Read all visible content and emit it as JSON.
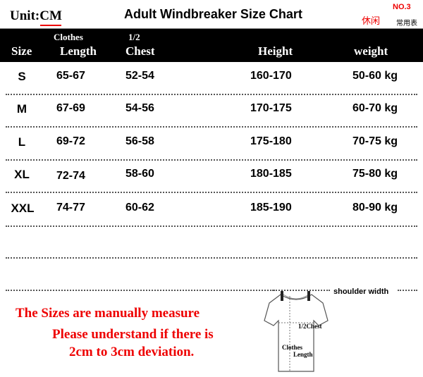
{
  "header": {
    "unit": "Unit:CM",
    "title": "Adult Windbreaker Size Chart",
    "no": "NO.3",
    "tag_red": "休闲",
    "tag_black": "常用表"
  },
  "columns": {
    "size": "Size",
    "length_top": "Clothes",
    "length": "Length",
    "chest_top": "1/2",
    "chest": "Chest",
    "height": "Height",
    "weight": "weight"
  },
  "rows": [
    {
      "size": "S",
      "length": "65-67",
      "chest": "52-54",
      "height": "160-170",
      "weight": "50-60 kg"
    },
    {
      "size": "M",
      "length": "67-69",
      "chest": "54-56",
      "height": "170-175",
      "weight": "60-70 kg"
    },
    {
      "size": "L",
      "length": "69-72",
      "chest": "56-58",
      "height": "175-180",
      "weight": "70-75 kg"
    },
    {
      "size": "XL",
      "length": "72-74",
      "chest": "58-60",
      "height": "180-185",
      "weight": "75-80 kg"
    },
    {
      "size": "XXL",
      "length": "74-77",
      "chest": "60-62",
      "height": "185-190",
      "weight": "80-90 kg"
    }
  ],
  "note": [
    "The Sizes are manually measure",
    "Please understand if  there is",
    "2cm to 3cm deviation."
  ],
  "diagram": {
    "shoulder": "shoulder width",
    "chest": "1/2Chest",
    "length1": "Clothes",
    "length2": "Length"
  },
  "colors": {
    "accent": "#e00000"
  }
}
